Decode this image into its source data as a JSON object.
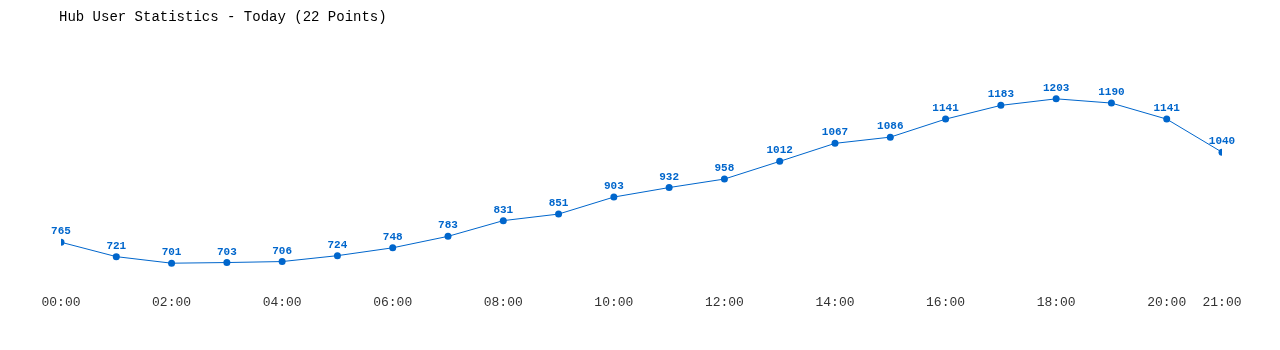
{
  "chart_data": {
    "type": "line",
    "title": "Hub User Statistics - Today (22 Points)",
    "x": [
      0,
      1,
      2,
      3,
      4,
      5,
      6,
      7,
      8,
      9,
      10,
      11,
      12,
      13,
      14,
      15,
      16,
      17,
      18,
      19,
      20,
      21
    ],
    "series": [
      {
        "color": "#0066cc",
        "values": [
          765,
          721,
          701,
          703,
          706,
          724,
          748,
          783,
          831,
          851,
          903,
          932,
          958,
          1012,
          1067,
          1086,
          1141,
          1183,
          1203,
          1190,
          1141,
          1040
        ]
      }
    ],
    "xlim": [
      0,
      21
    ],
    "xticks": [
      {
        "value": 0,
        "label": "00:00"
      },
      {
        "value": 2,
        "label": "02:00"
      },
      {
        "value": 4,
        "label": "04:00"
      },
      {
        "value": 6,
        "label": "06:00"
      },
      {
        "value": 8,
        "label": "08:00"
      },
      {
        "value": 10,
        "label": "10:00"
      },
      {
        "value": 12,
        "label": "12:00"
      },
      {
        "value": 14,
        "label": "14:00"
      },
      {
        "value": 16,
        "label": "16:00"
      },
      {
        "value": 18,
        "label": "18:00"
      },
      {
        "value": 20,
        "label": "20:00"
      },
      {
        "value": 21,
        "label": "21:00"
      }
    ],
    "data_labels": true,
    "marker": "circle",
    "line_style": "solid",
    "grid": false,
    "legend": false,
    "tick_labels": "x"
  }
}
